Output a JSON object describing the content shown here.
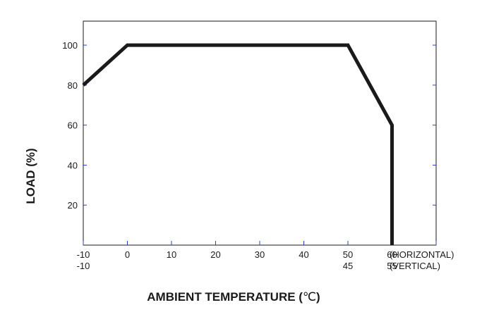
{
  "chart_data": {
    "type": "line",
    "title": "",
    "xlabel": "AMBIENT TEMPERATURE (",
    "xlabel_unit": "℃",
    "xlabel_close": ")",
    "ylabel": "LOAD (%)",
    "xlim": [
      -10,
      70
    ],
    "ylim": [
      0,
      112
    ],
    "x_ticks": [
      -10,
      0,
      10,
      20,
      30,
      40,
      50,
      60,
      70
    ],
    "x_tick_labels": [
      "-10",
      "0",
      "10",
      "20",
      "30",
      "40",
      "50",
      "60"
    ],
    "x_tick_labels_secondary": [
      "-10",
      "",
      "",
      "",
      "",
      "",
      "45",
      "55"
    ],
    "x_orientation_labels": [
      "(HORIZONTAL)",
      "(VERTICAL)"
    ],
    "y_ticks": [
      20,
      40,
      60,
      80,
      100
    ],
    "y_tick_labels": [
      "20",
      "40",
      "60",
      "80",
      "100"
    ],
    "grid": false,
    "series": [
      {
        "x": [
          -10,
          0,
          50,
          60,
          60
        ],
        "y": [
          80,
          100,
          100,
          60,
          0
        ]
      }
    ],
    "colors": {
      "line": "#1a1a1a",
      "frame": "#1a1a1a",
      "ticks": "#2b3fd6"
    }
  }
}
